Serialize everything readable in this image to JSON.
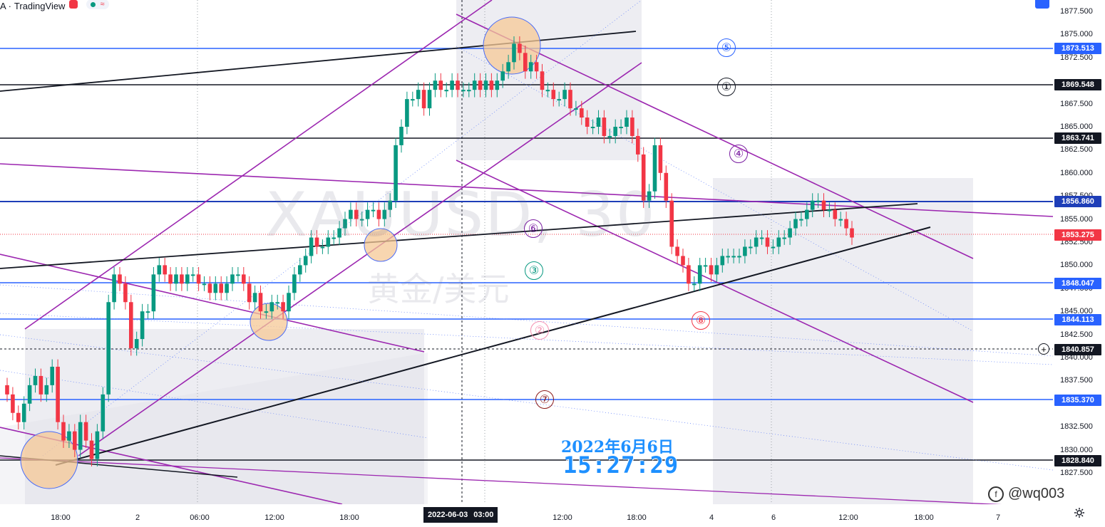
{
  "header": {
    "symbol_fragment": "A ·",
    "brand": "TradingView",
    "status_icon": "red-square-icon",
    "market_dot_color": "#089981",
    "wave_icon": "≈"
  },
  "chart": {
    "watermark_symbol": "XAUUSD, 30",
    "watermark_name": "黄金/美元",
    "stamp_date": "2022年6月6日",
    "stamp_time": "15:27:29",
    "author_mark": "@wq003"
  },
  "price_axis": {
    "ticks": [
      "1877.500",
      "1875.000",
      "1872.500",
      "1867.500",
      "1865.000",
      "1862.500",
      "1860.000",
      "1857.500",
      "1855.000",
      "1852.500",
      "1850.000",
      "1847.500",
      "1845.000",
      "1842.500",
      "1840.000",
      "1837.500",
      "1832.500",
      "1830.000",
      "1827.500"
    ],
    "labels": [
      {
        "value": "1873.513",
        "color": "#2962ff"
      },
      {
        "value": "1869.548",
        "color": "#131722"
      },
      {
        "value": "1863.741",
        "color": "#131722"
      },
      {
        "value": "1856.860",
        "color": "#1e3eb8"
      },
      {
        "value": "1853.275",
        "color": "#f23645"
      },
      {
        "value": "1848.047",
        "color": "#2962ff"
      },
      {
        "value": "1844.113",
        "color": "#2962ff"
      },
      {
        "value": "1840.857",
        "color": "#131722"
      },
      {
        "value": "1835.370",
        "color": "#2962ff"
      },
      {
        "value": "1828.840",
        "color": "#131722"
      }
    ]
  },
  "time_axis": {
    "ticks": [
      "18:00",
      "2",
      "06:00",
      "12:00",
      "18:00",
      "12:00",
      "18:00",
      "4",
      "6",
      "12:00",
      "18:00",
      "7"
    ],
    "crosshair_date": "2022-06-03",
    "crosshair_time": "03:00"
  },
  "markers": [
    {
      "label": "⑤",
      "color": "#2962ff"
    },
    {
      "label": "①",
      "color": "#131722"
    },
    {
      "label": "④",
      "color": "#7b1fa2"
    },
    {
      "label": "⑥",
      "color": "#7b1fa2"
    },
    {
      "label": "③",
      "color": "#089981"
    },
    {
      "label": "②",
      "color": "#f48fb1"
    },
    {
      "label": "⑧",
      "color": "#f23645"
    },
    {
      "label": "⑦",
      "color": "#8b1a1a"
    }
  ]
}
